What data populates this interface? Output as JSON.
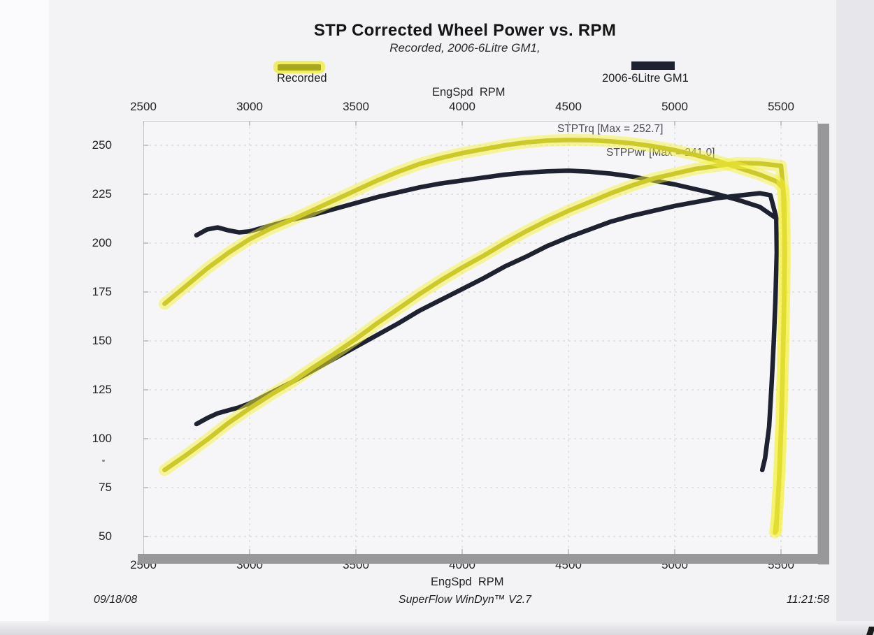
{
  "page": {
    "title": "STP Corrected Wheel Power vs. RPM",
    "subtitle": "Recorded, 2006-6Litre GM1,",
    "footer": {
      "date": "09/18/08",
      "software": "SuperFlow WinDyn™ V2.7",
      "time": "11:21:58"
    }
  },
  "legend": [
    {
      "label": "Recorded",
      "swatch": "yellow-highlighted-olive"
    },
    {
      "label": "2006-6Litre GM1",
      "swatch": "dark-navy"
    }
  ],
  "axes": {
    "x_label_top": "EngSpd  RPM",
    "x_label_bottom": "EngSpd  RPM",
    "x_ticks": [
      2500,
      3000,
      3500,
      4000,
      4500,
      5000,
      5500
    ],
    "y_ticks": [
      250,
      225,
      200,
      175,
      150,
      125,
      100,
      75,
      50
    ]
  },
  "annotations": [
    {
      "id": "stptrq-max",
      "text": "STPTrq [Max = 252.7]"
    },
    {
      "id": "stppwr-max",
      "text": "STPPwr [Max = 241.0]"
    }
  ],
  "colors": {
    "paper": "#f4f4f6",
    "ink_dark": "#1e2230",
    "olive_core": "#a2a119",
    "highlighter": "#f5f23c",
    "grid": "#cfcfd6",
    "tick": "#b5b5bc",
    "shadow": "#98989a",
    "annotation": "#4b4b55"
  },
  "chart_data": {
    "type": "line",
    "title": "STP Corrected Wheel Power vs. RPM",
    "subtitle": "Recorded, 2006-6Litre GM1,",
    "xlabel": "EngSpd RPM",
    "ylabel": "",
    "xlim": [
      2500,
      5667
    ],
    "ylim": [
      41,
      262.5
    ],
    "grid": true,
    "legend_position": "top",
    "note": "Dyno sheet: torque and power vs engine RPM for two runs; each run ends with a vertical data drop at end of pull. Values in [rpm, value] pairs.",
    "series": [
      {
        "name": "Recorded STPTrq",
        "run": "Recorded",
        "max": 252.7,
        "style": "olive core with yellow highlighter",
        "points": [
          [
            2600,
            169
          ],
          [
            2700,
            178
          ],
          [
            2800,
            187
          ],
          [
            2900,
            195
          ],
          [
            3000,
            202
          ],
          [
            3100,
            207.5
          ],
          [
            3200,
            212
          ],
          [
            3300,
            217
          ],
          [
            3400,
            222
          ],
          [
            3500,
            227
          ],
          [
            3600,
            232
          ],
          [
            3700,
            236.5
          ],
          [
            3800,
            240.5
          ],
          [
            3900,
            243.5
          ],
          [
            4000,
            246
          ],
          [
            4100,
            248
          ],
          [
            4200,
            250
          ],
          [
            4300,
            251.5
          ],
          [
            4400,
            252.4
          ],
          [
            4500,
            252.7
          ],
          [
            4600,
            252.6
          ],
          [
            4700,
            252
          ],
          [
            4800,
            251
          ],
          [
            4900,
            249.5
          ],
          [
            5000,
            247.5
          ],
          [
            5100,
            245
          ],
          [
            5200,
            242
          ],
          [
            5300,
            238.5
          ],
          [
            5400,
            235
          ],
          [
            5480,
            231.5
          ],
          [
            5510,
            228
          ],
          [
            5516,
            205
          ],
          [
            5515,
            175
          ],
          [
            5510,
            145
          ],
          [
            5504,
            115
          ],
          [
            5494,
            85
          ],
          [
            5480,
            60
          ],
          [
            5472,
            52
          ]
        ]
      },
      {
        "name": "Recorded STPPwr",
        "run": "Recorded",
        "max": 241.0,
        "style": "olive core with yellow highlighter",
        "points": [
          [
            2600,
            84
          ],
          [
            2700,
            91.5
          ],
          [
            2800,
            99.5
          ],
          [
            2900,
            108
          ],
          [
            3000,
            115.5
          ],
          [
            3100,
            122.5
          ],
          [
            3200,
            129
          ],
          [
            3300,
            136.5
          ],
          [
            3400,
            143.5
          ],
          [
            3500,
            151
          ],
          [
            3600,
            159
          ],
          [
            3700,
            166.5
          ],
          [
            3800,
            174
          ],
          [
            3900,
            181
          ],
          [
            4000,
            187.5
          ],
          [
            4100,
            193.5
          ],
          [
            4200,
            200
          ],
          [
            4300,
            206
          ],
          [
            4400,
            211.5
          ],
          [
            4500,
            216.5
          ],
          [
            4600,
            221
          ],
          [
            4700,
            225.5
          ],
          [
            4800,
            229.5
          ],
          [
            4900,
            233
          ],
          [
            5000,
            235.5
          ],
          [
            5100,
            238
          ],
          [
            5200,
            239.5
          ],
          [
            5300,
            241
          ],
          [
            5400,
            240.7
          ],
          [
            5500,
            239.5
          ],
          [
            5515,
            222
          ],
          [
            5518,
            195
          ],
          [
            5514,
            165
          ],
          [
            5508,
            135
          ],
          [
            5500,
            105
          ],
          [
            5490,
            78
          ],
          [
            5478,
            53
          ]
        ]
      },
      {
        "name": "2006-6Litre GM1 STPTrq",
        "run": "2006-6Litre GM1",
        "max": 237.0,
        "style": "dark navy",
        "points": [
          [
            2750,
            204
          ],
          [
            2800,
            207
          ],
          [
            2850,
            208
          ],
          [
            2900,
            206.5
          ],
          [
            2950,
            205.5
          ],
          [
            3000,
            206
          ],
          [
            3100,
            209
          ],
          [
            3200,
            212
          ],
          [
            3300,
            214.5
          ],
          [
            3400,
            217.5
          ],
          [
            3500,
            220.5
          ],
          [
            3600,
            223.5
          ],
          [
            3700,
            226
          ],
          [
            3800,
            228.5
          ],
          [
            3900,
            230.5
          ],
          [
            4000,
            232
          ],
          [
            4100,
            233.5
          ],
          [
            4200,
            235
          ],
          [
            4300,
            236
          ],
          [
            4400,
            236.7
          ],
          [
            4500,
            237
          ],
          [
            4600,
            236.5
          ],
          [
            4700,
            235.5
          ],
          [
            4800,
            234
          ],
          [
            4900,
            232
          ],
          [
            5000,
            230
          ],
          [
            5100,
            227.5
          ],
          [
            5200,
            225
          ],
          [
            5300,
            222
          ],
          [
            5400,
            218.5
          ],
          [
            5480,
            212.5
          ]
        ]
      },
      {
        "name": "2006-6Litre GM1 STPPwr",
        "run": "2006-6Litre GM1",
        "max": 225.5,
        "style": "dark navy",
        "points": [
          [
            2750,
            107.5
          ],
          [
            2800,
            110.5
          ],
          [
            2850,
            113
          ],
          [
            2900,
            114.5
          ],
          [
            2950,
            116
          ],
          [
            3000,
            118
          ],
          [
            3100,
            123.5
          ],
          [
            3200,
            129
          ],
          [
            3300,
            135
          ],
          [
            3400,
            141
          ],
          [
            3500,
            147
          ],
          [
            3600,
            153
          ],
          [
            3700,
            159
          ],
          [
            3800,
            165.5
          ],
          [
            3900,
            171
          ],
          [
            4000,
            176.5
          ],
          [
            4100,
            182
          ],
          [
            4200,
            188
          ],
          [
            4300,
            193
          ],
          [
            4400,
            198.5
          ],
          [
            4500,
            203
          ],
          [
            4600,
            207
          ],
          [
            4700,
            211
          ],
          [
            4800,
            214
          ],
          [
            4900,
            216.5
          ],
          [
            5000,
            219
          ],
          [
            5100,
            221
          ],
          [
            5200,
            223
          ],
          [
            5300,
            224.3
          ],
          [
            5400,
            225.5
          ],
          [
            5450,
            224.5
          ],
          [
            5478,
            213
          ],
          [
            5480,
            195
          ],
          [
            5474,
            172
          ],
          [
            5466,
            150
          ],
          [
            5456,
            128
          ],
          [
            5444,
            106
          ],
          [
            5425,
            90
          ],
          [
            5412,
            84
          ]
        ]
      }
    ]
  }
}
